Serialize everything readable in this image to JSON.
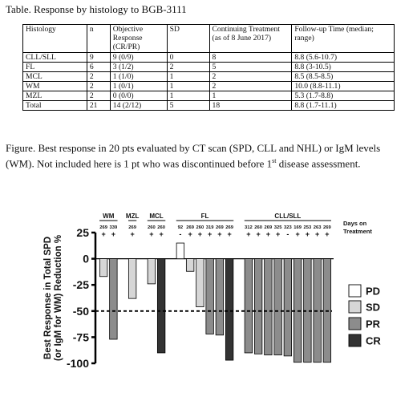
{
  "table_title": "Table. Response by histology to BGB-3111",
  "table": {
    "headers": [
      "Histology",
      "n",
      "Objective Response (CR/PR)",
      "SD",
      "Continuing Treatment (as of 8 June 2017)",
      "Follow-up Time (median; range)"
    ],
    "rows": [
      [
        "CLL/SLL",
        "9",
        "9 (0/9)",
        "0",
        "8",
        "8.8 (5.6-10.7)"
      ],
      [
        "FL",
        "6",
        "3 (1/2)",
        "2",
        "5",
        "8.8 (3-10.5)"
      ],
      [
        "MCL",
        "2",
        "1 (1/0)",
        "1",
        "2",
        "8.5 (8.5-8.5)"
      ],
      [
        "WM",
        "2",
        "1 (0/1)",
        "1",
        "2",
        "10.0 (8.8-11.1)"
      ],
      [
        "MZL",
        "2",
        "0 (0/0)",
        "1",
        "1",
        "5.3 (1.7-8.8)"
      ],
      [
        "Total",
        "21",
        "14 (2/12)",
        "5",
        "18",
        "8.8 (1.7-11.1)"
      ]
    ]
  },
  "figure_caption": "Figure. Best response in 20 pts evaluated by CT scan (SPD, CLL and NHL) or IgM levels (WM). Not included here is 1 pt who was discontinued before 1st disease assessment.",
  "caption_superscript": "st",
  "chart_data": {
    "type": "bar",
    "ylabel": "Best Response in Total SPD (or IgM for WM) Reduction %",
    "ylim": [
      -100,
      25
    ],
    "yticks": [
      25,
      0,
      -25,
      -50,
      -75,
      -100
    ],
    "reference_line": -50,
    "days_label": "Days on Treatment",
    "groups": [
      {
        "label": "WM",
        "count": 2
      },
      {
        "label": "MZL",
        "count": 1
      },
      {
        "label": "MCL",
        "count": 2
      },
      {
        "label": "FL",
        "count": 6
      },
      {
        "label": "CLL/SLL",
        "count": 9
      }
    ],
    "bars": [
      {
        "group": "WM",
        "value": -17,
        "response": "SD",
        "days": "269",
        "continuing": "+"
      },
      {
        "group": "WM",
        "value": -77,
        "response": "PR",
        "days": "339",
        "continuing": "+"
      },
      {
        "group": "MZL",
        "value": -38,
        "response": "SD",
        "days": "269",
        "continuing": "+"
      },
      {
        "group": "MCL",
        "value": -24,
        "response": "SD",
        "days": "260",
        "continuing": "+"
      },
      {
        "group": "MCL",
        "value": -90,
        "response": "CR",
        "days": "260",
        "continuing": "+"
      },
      {
        "group": "FL",
        "value": 15,
        "response": "PD",
        "days": "92",
        "continuing": "-"
      },
      {
        "group": "FL",
        "value": -12,
        "response": "SD",
        "days": "269",
        "continuing": "+"
      },
      {
        "group": "FL",
        "value": -46,
        "response": "SD",
        "days": "260",
        "continuing": "+"
      },
      {
        "group": "FL",
        "value": -72,
        "response": "PR",
        "days": "319",
        "continuing": "+"
      },
      {
        "group": "FL",
        "value": -73,
        "response": "PR",
        "days": "269",
        "continuing": "+"
      },
      {
        "group": "FL",
        "value": -97,
        "response": "CR",
        "days": "269",
        "continuing": "+"
      },
      {
        "group": "CLL/SLL",
        "value": -90,
        "response": "PR",
        "days": "312",
        "continuing": "+"
      },
      {
        "group": "CLL/SLL",
        "value": -91,
        "response": "PR",
        "days": "260",
        "continuing": "+"
      },
      {
        "group": "CLL/SLL",
        "value": -92,
        "response": "PR",
        "days": "269",
        "continuing": "+"
      },
      {
        "group": "CLL/SLL",
        "value": -92,
        "response": "PR",
        "days": "325",
        "continuing": "+"
      },
      {
        "group": "CLL/SLL",
        "value": -93,
        "response": "PR",
        "days": "323",
        "continuing": "-"
      },
      {
        "group": "CLL/SLL",
        "value": -99,
        "response": "PR",
        "days": "169",
        "continuing": "+"
      },
      {
        "group": "CLL/SLL",
        "value": -99,
        "response": "PR",
        "days": "253",
        "continuing": "+"
      },
      {
        "group": "CLL/SLL",
        "value": -99,
        "response": "PR",
        "days": "263",
        "continuing": "+"
      },
      {
        "group": "CLL/SLL",
        "value": -99,
        "response": "PR",
        "days": "269",
        "continuing": "+"
      }
    ],
    "legend": [
      {
        "label": "PD",
        "color": "#ffffff"
      },
      {
        "label": "SD",
        "color": "#d6d6d6"
      },
      {
        "label": "PR",
        "color": "#8c8c8c"
      },
      {
        "label": "CR",
        "color": "#333333"
      }
    ],
    "legend_placement": "right",
    "grid": false
  }
}
